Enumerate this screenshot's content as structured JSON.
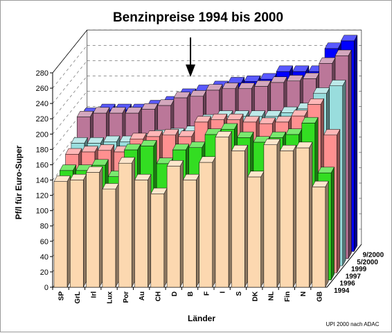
{
  "chart_data": {
    "type": "bar",
    "title": "Benzinpreise 1994 bis 2000",
    "ylabel": "Pf/l für Euro-Super",
    "xlabel": "Länder",
    "source": "UPI 2000 nach ADAC",
    "ylim": [
      0,
      280
    ],
    "yticks": [
      0,
      20,
      40,
      60,
      80,
      100,
      120,
      140,
      160,
      180,
      200,
      220,
      240,
      260,
      280
    ],
    "grid": true,
    "annotation": "arrow above B",
    "categories": [
      "SP",
      "GrL",
      "Irl",
      "Lux",
      "Por",
      "Au",
      "CH",
      "D",
      "B",
      "F",
      "I",
      "S",
      "DK",
      "NL",
      "Fin",
      "N",
      "GB"
    ],
    "series": [
      {
        "name": "1994",
        "color": "#fcd8b0",
        "values": [
          138,
          140,
          150,
          128,
          162,
          140,
          122,
          158,
          140,
          163,
          196,
          178,
          144,
          186,
          178,
          182,
          131
        ]
      },
      {
        "name": "1996",
        "color": "#33dd22",
        "values": [
          143,
          143,
          150,
          135,
          170,
          175,
          152,
          170,
          173,
          190,
          197,
          186,
          180,
          186,
          190,
          205,
          140
        ]
      },
      {
        "name": "1997",
        "color": "#ff9090",
        "values": [
          155,
          158,
          160,
          158,
          175,
          178,
          180,
          178,
          197,
          200,
          200,
          197,
          195,
          197,
          205,
          220,
          180
        ]
      },
      {
        "name": "1999",
        "color": "#99dddd",
        "values": [
          160,
          160,
          162,
          162,
          165,
          170,
          172,
          175,
          190,
          195,
          195,
          195,
          195,
          200,
          205,
          225,
          235
        ]
      },
      {
        "name": "5/2000",
        "color": "#bb7799",
        "values": [
          185,
          190,
          190,
          190,
          195,
          200,
          210,
          212,
          220,
          222,
          222,
          225,
          230,
          232,
          235,
          255,
          265
        ]
      },
      {
        "name": "9/2000",
        "color": "#0000ff",
        "values": [
          180,
          185,
          185,
          185,
          190,
          195,
          205,
          210,
          215,
          220,
          222,
          225,
          235,
          235,
          235,
          265,
          275
        ]
      }
    ]
  }
}
